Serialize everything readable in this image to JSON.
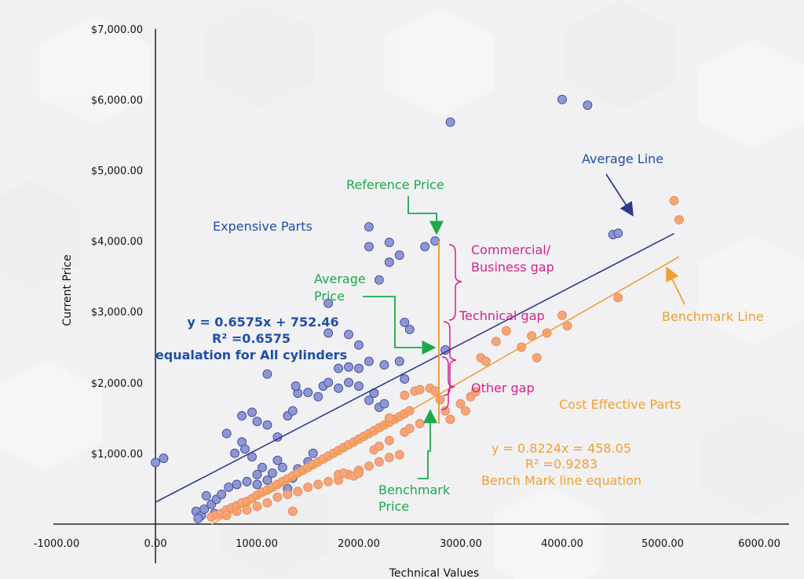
{
  "chart_data": {
    "type": "scatter",
    "xlabel": "Technical Values",
    "ylabel": "Current Price",
    "xlim": [
      -1000,
      6000
    ],
    "ylim": [
      0,
      7000
    ],
    "grid": false,
    "x_ticks": [
      "-1000.00",
      "0.00",
      "1000.00",
      "2000.00",
      "3000.00",
      "4000.00",
      "5000.00",
      "6000.00"
    ],
    "y_ticks": [
      "$1,000.00",
      "$2,000.00",
      "$3,000.00",
      "$4,000.00",
      "$5,000.00",
      "$6,000.00",
      "$7,000.00"
    ],
    "series": [
      {
        "color": "#8e97d4",
        "points": [
          [
            0,
            870
          ],
          [
            80,
            930
          ],
          [
            400,
            180
          ],
          [
            450,
            120
          ],
          [
            480,
            210
          ],
          [
            420,
            80
          ],
          [
            550,
            280
          ],
          [
            600,
            350
          ],
          [
            650,
            420
          ],
          [
            580,
            150
          ],
          [
            500,
            400
          ],
          [
            700,
            1280
          ],
          [
            780,
            1000
          ],
          [
            850,
            1160
          ],
          [
            880,
            1060
          ],
          [
            950,
            950
          ],
          [
            1000,
            700
          ],
          [
            1050,
            800
          ],
          [
            1100,
            620
          ],
          [
            720,
            520
          ],
          [
            800,
            560
          ],
          [
            900,
            600
          ],
          [
            1000,
            560
          ],
          [
            1150,
            720
          ],
          [
            1200,
            900
          ],
          [
            1250,
            800
          ],
          [
            1300,
            500
          ],
          [
            1350,
            650
          ],
          [
            1400,
            780
          ],
          [
            1500,
            880
          ],
          [
            1550,
            1000
          ],
          [
            850,
            1530
          ],
          [
            950,
            1580
          ],
          [
            1000,
            1450
          ],
          [
            1100,
            1400
          ],
          [
            1200,
            1230
          ],
          [
            1300,
            1530
          ],
          [
            1350,
            1600
          ],
          [
            1400,
            1850
          ],
          [
            1500,
            1860
          ],
          [
            1600,
            1800
          ],
          [
            1650,
            1950
          ],
          [
            1700,
            2000
          ],
          [
            1800,
            1920
          ],
          [
            1900,
            2000
          ],
          [
            2000,
            1950
          ],
          [
            1100,
            2120
          ],
          [
            1380,
            1950
          ],
          [
            1800,
            2200
          ],
          [
            1900,
            2220
          ],
          [
            2000,
            2530
          ],
          [
            2100,
            2300
          ],
          [
            2250,
            2250
          ],
          [
            2400,
            2300
          ],
          [
            2450,
            2050
          ],
          [
            2100,
            1750
          ],
          [
            2150,
            1850
          ],
          [
            2200,
            1650
          ],
          [
            2250,
            1700
          ],
          [
            2450,
            2850
          ],
          [
            2500,
            2750
          ],
          [
            1700,
            2700
          ],
          [
            1900,
            2680
          ],
          [
            2000,
            2200
          ],
          [
            2200,
            3450
          ],
          [
            2300,
            3700
          ],
          [
            2400,
            3800
          ],
          [
            2100,
            3920
          ],
          [
            2300,
            3980
          ],
          [
            2100,
            4200
          ],
          [
            2650,
            3920
          ],
          [
            2750,
            4000
          ],
          [
            2850,
            2460
          ],
          [
            2900,
            5680
          ],
          [
            4000,
            6000
          ],
          [
            4250,
            5920
          ],
          [
            4500,
            4090
          ],
          [
            4550,
            4110
          ],
          [
            1700,
            3120
          ]
        ]
      },
      {
        "color": "#f5a57a",
        "points": [
          [
            550,
            100
          ],
          [
            600,
            130
          ],
          [
            650,
            150
          ],
          [
            700,
            200
          ],
          [
            750,
            230
          ],
          [
            800,
            260
          ],
          [
            850,
            300
          ],
          [
            900,
            320
          ],
          [
            950,
            360
          ],
          [
            1000,
            410
          ],
          [
            1050,
            450
          ],
          [
            1100,
            480
          ],
          [
            1150,
            520
          ],
          [
            1200,
            560
          ],
          [
            1250,
            600
          ],
          [
            1300,
            640
          ],
          [
            1350,
            680
          ],
          [
            1400,
            720
          ],
          [
            1450,
            760
          ],
          [
            1500,
            800
          ],
          [
            1550,
            840
          ],
          [
            1600,
            880
          ],
          [
            1650,
            920
          ],
          [
            1700,
            960
          ],
          [
            1750,
            1000
          ],
          [
            1800,
            1040
          ],
          [
            1850,
            1080
          ],
          [
            1900,
            1120
          ],
          [
            1950,
            1160
          ],
          [
            2000,
            1200
          ],
          [
            2050,
            1240
          ],
          [
            2100,
            1280
          ],
          [
            2150,
            1320
          ],
          [
            2200,
            1360
          ],
          [
            2250,
            1400
          ],
          [
            2300,
            1440
          ],
          [
            2350,
            1480
          ],
          [
            2400,
            1520
          ],
          [
            2450,
            1560
          ],
          [
            2500,
            1600
          ],
          [
            700,
            120
          ],
          [
            800,
            180
          ],
          [
            900,
            200
          ],
          [
            1000,
            250
          ],
          [
            1100,
            300
          ],
          [
            1200,
            380
          ],
          [
            1300,
            420
          ],
          [
            1400,
            460
          ],
          [
            1500,
            520
          ],
          [
            1600,
            560
          ],
          [
            1700,
            600
          ],
          [
            1800,
            620
          ],
          [
            1900,
            700
          ],
          [
            2000,
            760
          ],
          [
            2100,
            820
          ],
          [
            2200,
            880
          ],
          [
            2300,
            940
          ],
          [
            2400,
            980
          ],
          [
            1350,
            180
          ],
          [
            1800,
            700
          ],
          [
            1850,
            720
          ],
          [
            1950,
            680
          ],
          [
            2000,
            720
          ],
          [
            2150,
            1050
          ],
          [
            2200,
            1100
          ],
          [
            2300,
            1180
          ],
          [
            2450,
            1300
          ],
          [
            2500,
            1350
          ],
          [
            2600,
            1420
          ],
          [
            2300,
            1500
          ],
          [
            2450,
            1820
          ],
          [
            2550,
            1880
          ],
          [
            2600,
            1900
          ],
          [
            2700,
            1920
          ],
          [
            2750,
            1880
          ],
          [
            2800,
            1760
          ],
          [
            2850,
            1600
          ],
          [
            2900,
            1480
          ],
          [
            3000,
            1700
          ],
          [
            3050,
            1600
          ],
          [
            3100,
            1800
          ],
          [
            3150,
            1870
          ],
          [
            3200,
            2350
          ],
          [
            3250,
            2300
          ],
          [
            3350,
            2580
          ],
          [
            3450,
            2730
          ],
          [
            3600,
            2500
          ],
          [
            3700,
            2660
          ],
          [
            3750,
            2350
          ],
          [
            3850,
            2700
          ],
          [
            4000,
            2950
          ],
          [
            4050,
            2800
          ],
          [
            4550,
            3200
          ],
          [
            5100,
            4570
          ],
          [
            5150,
            4300
          ]
        ]
      }
    ],
    "lines": [
      {
        "name": "Average Line",
        "equation": "y = 0.6575x + 752.46",
        "slope": 0.6575,
        "intercept": 752.46,
        "x_range": [
          0,
          5100
        ],
        "color": "#2c3a8f"
      },
      {
        "name": "Benchmark Line",
        "equation": "y = 0.8224x = 458.05",
        "slope": 0.8224,
        "intercept": -458.05,
        "x_range": [
          550,
          5150
        ],
        "color": "#f0a030"
      }
    ],
    "annotations": {
      "average_line": "Average Line",
      "benchmark_line": "Benchmark Line",
      "reference_price": "Reference Price",
      "average_price_1": "Average",
      "average_price_2": "Price",
      "benchmark_price_1": "Benchmark",
      "benchmark_price_2": "Price",
      "expensive_parts": "Expensive Parts",
      "cost_effective_parts": "Cost Effective Parts",
      "commercial_gap_1": "Commercial/",
      "commercial_gap_2": "Business gap",
      "technical_gap": "Technical gap",
      "other_gap": "Other gap",
      "avg_eq_1": "y = 0.6575x + 752.46",
      "avg_eq_2": "R² =0.6575",
      "avg_eq_3": "equalation for All cylinders",
      "bench_eq_1": "y = 0.8224x = 458.05",
      "bench_eq_2": "R² =0.9283",
      "bench_eq_3": "Bench Mark line equation"
    },
    "colors": {
      "blue_text": "#1f4fa8",
      "green_text": "#1aaa4a",
      "magenta_text": "#d6218d",
      "orange_text": "#f0a030",
      "axis": "#222222",
      "background": "#f1f1f3"
    }
  }
}
